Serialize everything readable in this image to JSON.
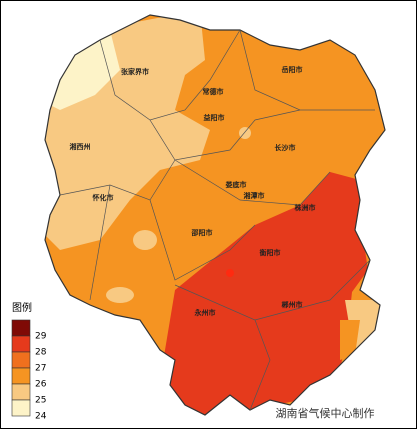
{
  "legend": {
    "title": "图例",
    "levels": [
      {
        "label": "29",
        "color": "#7f0a06"
      },
      {
        "label": "28",
        "color": "#e53a1c"
      },
      {
        "label": "27",
        "color": "#f0701e"
      },
      {
        "label": "26",
        "color": "#f59422"
      },
      {
        "label": "25",
        "color": "#f8c982"
      },
      {
        "label": "24",
        "color": "#fdf3c8"
      }
    ]
  },
  "cities": [
    {
      "label": "张家界市"
    },
    {
      "label": "常德市"
    },
    {
      "label": "岳阳市"
    },
    {
      "label": "益阳市"
    },
    {
      "label": "长沙市"
    },
    {
      "label": "湘西州"
    },
    {
      "label": "怀化市"
    },
    {
      "label": "娄底市"
    },
    {
      "label": "湘潭市"
    },
    {
      "label": "株洲市"
    },
    {
      "label": "邵阳市"
    },
    {
      "label": "衡阳市"
    },
    {
      "label": "永州市"
    },
    {
      "label": "郴州市"
    }
  ],
  "credit": "湖南省气候中心制作"
}
